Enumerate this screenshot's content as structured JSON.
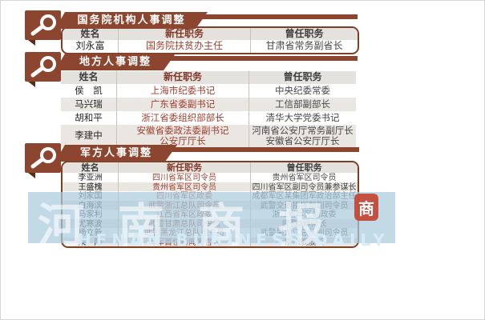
{
  "colors": {
    "banner": "#8c4630",
    "frame": "#7c3e24",
    "header_bg": "#e5e2de",
    "alt_row_bg": "#eae7e3",
    "new_position_text": "#9c4130",
    "watermark_band": "#aacbdc",
    "seal_red": "#c44534"
  },
  "icons": {
    "magnifier": "magnifier-icon",
    "seal": "seal-stamp"
  },
  "sections": [
    {
      "title": "国务院机构人事调整",
      "headers": [
        "姓名",
        "新任职务",
        "曾任职务"
      ],
      "rows": [
        {
          "name": "刘永富",
          "new": "国务院扶贫办主任",
          "old": "甘肃省常务副省长"
        }
      ]
    },
    {
      "title": "地方人事调整",
      "headers": [
        "姓名",
        "新任职务",
        "曾任职务"
      ],
      "rows": [
        {
          "name": "侯　凯",
          "new": "上海市纪委书记",
          "old": "中央纪委常委"
        },
        {
          "name": "马兴瑞",
          "new": "广东省委副书记",
          "old": "工信部副部长"
        },
        {
          "name": "胡和平",
          "new": "浙江省委组织部部长",
          "old": "清华大学党委书记"
        },
        {
          "name": "李建中",
          "new": "安徽省委政法委副书记\n公安厅厅长",
          "old": "河南省公安厅常务副厅长\n安徽省公安厅厅长"
        }
      ]
    },
    {
      "title": "军方人事调整",
      "headers": [
        "姓名",
        "新任职务",
        "曾任职务"
      ],
      "rows": [
        {
          "name": "李亚洲",
          "new": "四川省军区司令员",
          "old": "贵州省军区司令员"
        },
        {
          "name": "王盛槐",
          "new": "贵州省军区司令员",
          "old": "四川省军区副司令员兼参谋长"
        },
        {
          "name": "刘家国",
          "new": "四川省军区政委",
          "old": "成都军区某集团军政治部主任"
        },
        {
          "name": "白海滨",
          "new": "武警浙江总队司令员",
          "old": "武警交通指挥部副司令员"
        },
        {
          "name": "马家利",
          "new": "江西省军区政委",
          "old": "浙江省军区副政委"
        },
        {
          "name": "尤寒波",
          "new": "武警甘肃总队司令员",
          "old": "武警2师师长"
        },
        {
          "name": "杨立新",
          "new": "武警黑龙江总队司令员",
          "old": "武警黑龙江总队副司令员"
        },
        {
          "name": "梁　阳",
          "new": "海军首位新闻发言人",
          "old": "常州舰舰长"
        }
      ]
    }
  ],
  "watermark": {
    "cn": "河南商报",
    "en": "HENAN BUSINESS DAILY",
    "seal": "商"
  }
}
